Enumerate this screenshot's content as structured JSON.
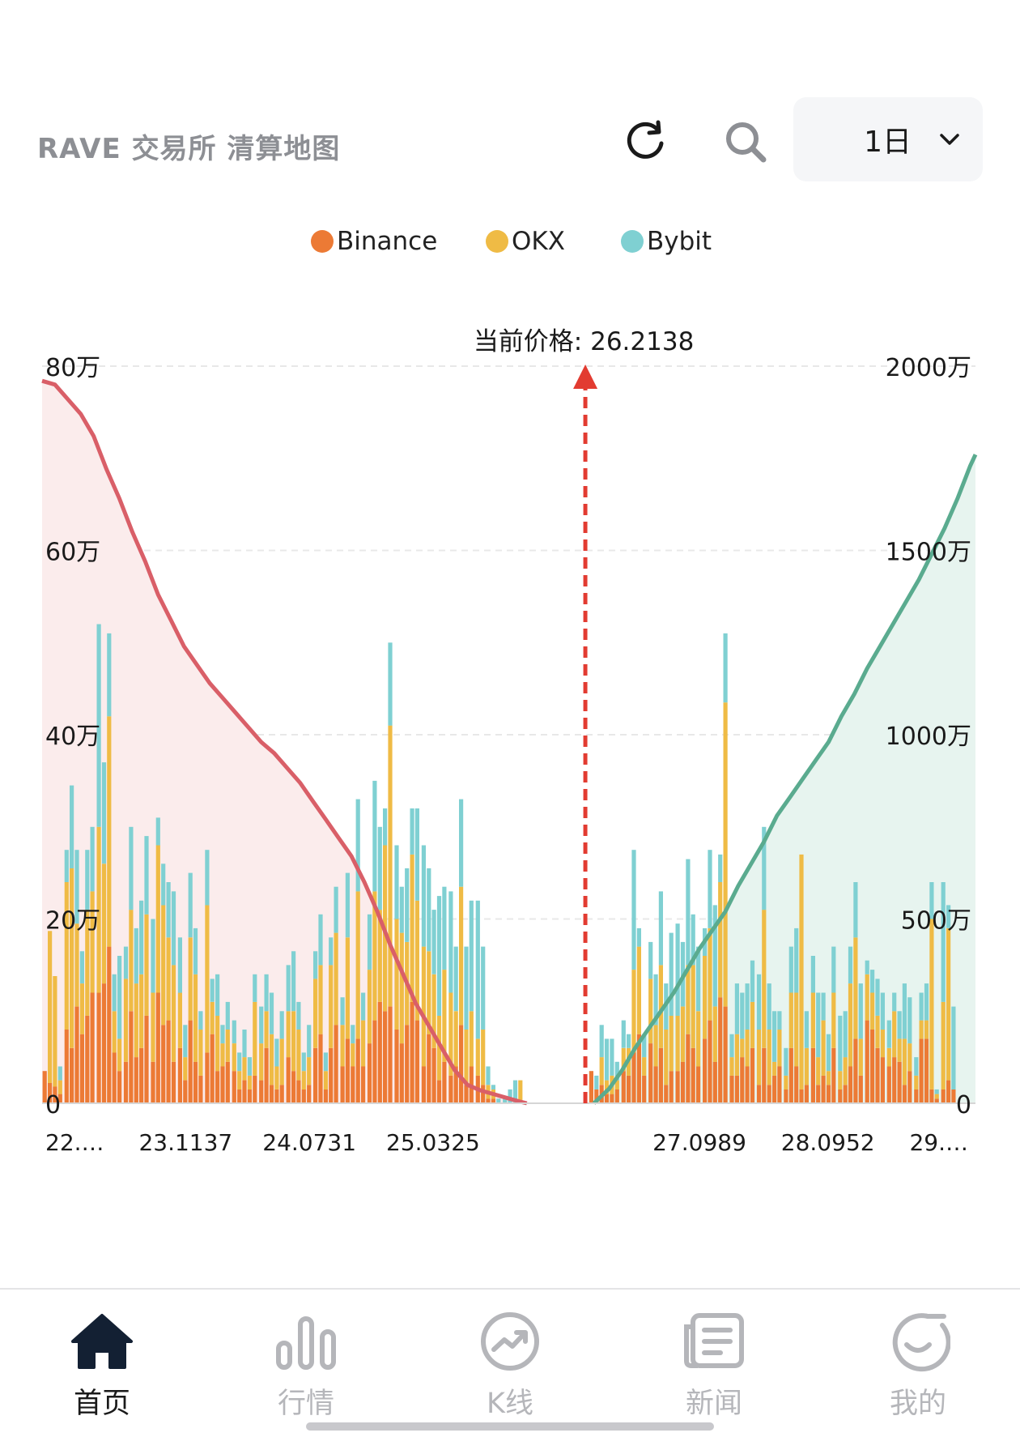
{
  "header": {
    "title": "RAVE 交易所 清算地图",
    "period_label": "1日",
    "icons": [
      "refresh-icon",
      "search-icon",
      "chevron-down-icon"
    ]
  },
  "legend": [
    {
      "label": "Binance",
      "color": "#ec7a35"
    },
    {
      "label": "OKX",
      "color": "#efbb45"
    },
    {
      "label": "Bybit",
      "color": "#7fd0d2"
    }
  ],
  "colors": {
    "binance": "#ec7a35",
    "okx": "#efbb45",
    "bybit": "#7fd0d2",
    "short_line": "#d95f68",
    "short_fill": "#fbecec",
    "long_line": "#5aab8f",
    "long_fill": "#e7f4ef",
    "price_marker": "#e23b31",
    "grid": "#e8e8e8"
  },
  "chart_data": {
    "type": "bar",
    "title": "RAVE 交易所 清算地图",
    "current_price_label": "当前价格: 26.2138",
    "current_price": 26.2138,
    "x_tick_labels": [
      "22.…",
      "23.1137",
      "24.0731",
      "25.0325",
      "27.0989",
      "28.0952",
      "29.…"
    ],
    "x_tick_values": [
      22.16,
      23.1137,
      24.0731,
      25.0325,
      27.0989,
      28.0952,
      29.09
    ],
    "xlim": [
      22.0,
      29.24
    ],
    "y_left": {
      "ticks": [
        "0",
        "20万",
        "40万",
        "60万",
        "80万"
      ],
      "tick_values": [
        0,
        200000,
        400000,
        600000,
        800000
      ],
      "ylim": [
        0,
        800000
      ]
    },
    "y_right": {
      "ticks": [
        "0",
        "500万",
        "1000万",
        "1500万",
        "2000万"
      ],
      "tick_values": [
        0,
        5000000,
        10000000,
        15000000,
        20000000
      ],
      "ylim": [
        0,
        20000000
      ]
    },
    "bar_series": [
      "Binance",
      "OKX",
      "Bybit"
    ],
    "bars": [
      [
        22.02,
        35000,
        0,
        0
      ],
      [
        22.06,
        22000,
        165000,
        0
      ],
      [
        22.1,
        18000,
        120000,
        0
      ],
      [
        22.14,
        10000,
        15000,
        15000
      ],
      [
        22.19,
        80000,
        160000,
        35000
      ],
      [
        22.23,
        60000,
        195000,
        90000
      ],
      [
        22.27,
        105000,
        90000,
        80000
      ],
      [
        22.31,
        75000,
        55000,
        35000
      ],
      [
        22.35,
        95000,
        115000,
        65000
      ],
      [
        22.39,
        120000,
        110000,
        70000
      ],
      [
        22.44,
        120000,
        180000,
        220000
      ],
      [
        22.48,
        130000,
        130000,
        110000
      ],
      [
        22.52,
        170000,
        250000,
        90000
      ],
      [
        22.56,
        55000,
        45000,
        40000
      ],
      [
        22.6,
        35000,
        35000,
        90000
      ],
      [
        22.65,
        45000,
        90000,
        35000
      ],
      [
        22.69,
        100000,
        110000,
        90000
      ],
      [
        22.73,
        50000,
        80000,
        60000
      ],
      [
        22.77,
        60000,
        80000,
        80000
      ],
      [
        22.81,
        95000,
        110000,
        85000
      ],
      [
        22.86,
        45000,
        75000,
        80000
      ],
      [
        22.9,
        120000,
        160000,
        30000
      ],
      [
        22.94,
        85000,
        130000,
        45000
      ],
      [
        22.98,
        90000,
        90000,
        60000
      ],
      [
        23.02,
        45000,
        105000,
        80000
      ],
      [
        23.07,
        60000,
        60000,
        60000
      ],
      [
        23.11,
        25000,
        25000,
        35000
      ],
      [
        23.15,
        90000,
        90000,
        70000
      ],
      [
        23.19,
        45000,
        95000,
        50000
      ],
      [
        23.23,
        30000,
        50000,
        20000
      ],
      [
        23.28,
        55000,
        160000,
        60000
      ],
      [
        23.32,
        75000,
        35000,
        25000
      ],
      [
        23.36,
        35000,
        60000,
        45000
      ],
      [
        23.4,
        40000,
        25000,
        20000
      ],
      [
        23.44,
        45000,
        35000,
        30000
      ],
      [
        23.49,
        35000,
        30000,
        25000
      ],
      [
        23.53,
        15000,
        20000,
        20000
      ],
      [
        23.57,
        25000,
        25000,
        30000
      ],
      [
        23.61,
        15000,
        15000,
        20000
      ],
      [
        23.65,
        30000,
        80000,
        30000
      ],
      [
        23.7,
        25000,
        40000,
        40000
      ],
      [
        23.74,
        60000,
        40000,
        40000
      ],
      [
        23.78,
        20000,
        55000,
        45000
      ],
      [
        23.82,
        15000,
        25000,
        30000
      ],
      [
        23.86,
        20000,
        50000,
        30000
      ],
      [
        23.91,
        50000,
        50000,
        50000
      ],
      [
        23.95,
        35000,
        65000,
        65000
      ],
      [
        23.99,
        25000,
        55000,
        30000
      ],
      [
        24.03,
        15000,
        20000,
        20000
      ],
      [
        24.07,
        20000,
        30000,
        35000
      ],
      [
        24.12,
        60000,
        75000,
        30000
      ],
      [
        24.16,
        75000,
        75000,
        55000
      ],
      [
        24.2,
        15000,
        20000,
        20000
      ],
      [
        24.24,
        60000,
        90000,
        30000
      ],
      [
        24.28,
        85000,
        100000,
        50000
      ],
      [
        24.33,
        40000,
        45000,
        30000
      ],
      [
        24.37,
        70000,
        110000,
        70000
      ],
      [
        24.41,
        40000,
        25000,
        20000
      ],
      [
        24.45,
        70000,
        160000,
        100000
      ],
      [
        24.49,
        40000,
        50000,
        30000
      ],
      [
        24.54,
        65000,
        80000,
        60000
      ],
      [
        24.58,
        90000,
        140000,
        120000
      ],
      [
        24.62,
        110000,
        100000,
        90000
      ],
      [
        24.66,
        100000,
        180000,
        40000
      ],
      [
        24.7,
        105000,
        305000,
        90000
      ],
      [
        24.75,
        80000,
        120000,
        80000
      ],
      [
        24.79,
        65000,
        120000,
        50000
      ],
      [
        24.83,
        85000,
        90000,
        80000
      ],
      [
        24.87,
        110000,
        160000,
        50000
      ],
      [
        24.91,
        90000,
        130000,
        100000
      ],
      [
        24.96,
        40000,
        130000,
        110000
      ],
      [
        25.0,
        75000,
        90000,
        90000
      ],
      [
        25.04,
        60000,
        80000,
        70000
      ],
      [
        25.08,
        25000,
        70000,
        130000
      ],
      [
        25.12,
        45000,
        100000,
        90000
      ],
      [
        25.17,
        30000,
        90000,
        110000
      ],
      [
        25.21,
        40000,
        60000,
        70000
      ],
      [
        25.25,
        85000,
        150000,
        95000
      ],
      [
        25.29,
        20000,
        60000,
        90000
      ],
      [
        25.33,
        40000,
        60000,
        120000
      ],
      [
        25.38,
        30000,
        40000,
        150000
      ],
      [
        25.42,
        20000,
        60000,
        90000
      ],
      [
        25.46,
        5000,
        15000,
        20000
      ],
      [
        25.5,
        5000,
        10000,
        5000
      ],
      [
        25.54,
        0,
        0,
        5000
      ],
      [
        25.59,
        0,
        0,
        8000
      ],
      [
        25.63,
        0,
        0,
        15000
      ],
      [
        25.67,
        0,
        0,
        25000
      ],
      [
        25.71,
        0,
        25000,
        0
      ],
      [
        26.26,
        35000,
        0,
        0
      ],
      [
        26.3,
        15000,
        0,
        15000
      ],
      [
        26.34,
        20000,
        30000,
        35000
      ],
      [
        26.38,
        10000,
        15000,
        45000
      ],
      [
        26.42,
        10000,
        20000,
        40000
      ],
      [
        26.46,
        15000,
        10000,
        20000
      ],
      [
        26.51,
        35000,
        25000,
        30000
      ],
      [
        26.55,
        30000,
        30000,
        15000
      ],
      [
        26.59,
        55000,
        90000,
        130000
      ],
      [
        26.63,
        75000,
        95000,
        20000
      ],
      [
        26.67,
        30000,
        20000,
        25000
      ],
      [
        26.72,
        65000,
        70000,
        40000
      ],
      [
        26.76,
        40000,
        45000,
        55000
      ],
      [
        26.8,
        60000,
        90000,
        80000
      ],
      [
        26.84,
        20000,
        60000,
        50000
      ],
      [
        26.88,
        35000,
        60000,
        90000
      ],
      [
        26.93,
        35000,
        60000,
        100000
      ],
      [
        26.97,
        45000,
        60000,
        70000
      ],
      [
        27.01,
        75000,
        75000,
        115000
      ],
      [
        27.05,
        60000,
        90000,
        55000
      ],
      [
        27.09,
        40000,
        60000,
        70000
      ],
      [
        27.14,
        70000,
        90000,
        30000
      ],
      [
        27.18,
        90000,
        100000,
        85000
      ],
      [
        27.22,
        45000,
        60000,
        110000
      ],
      [
        27.26,
        115000,
        125000,
        30000
      ],
      [
        27.3,
        105000,
        330000,
        75000
      ],
      [
        27.35,
        30000,
        20000,
        25000
      ],
      [
        27.39,
        30000,
        45000,
        55000
      ],
      [
        27.43,
        50000,
        20000,
        50000
      ],
      [
        27.47,
        40000,
        40000,
        50000
      ],
      [
        27.51,
        60000,
        50000,
        45000
      ],
      [
        27.56,
        20000,
        60000,
        60000
      ],
      [
        27.6,
        60000,
        150000,
        90000
      ],
      [
        27.64,
        20000,
        60000,
        50000
      ],
      [
        27.68,
        30000,
        15000,
        55000
      ],
      [
        27.72,
        40000,
        40000,
        20000
      ],
      [
        27.77,
        15000,
        15000,
        30000
      ],
      [
        27.81,
        60000,
        60000,
        50000
      ],
      [
        27.85,
        40000,
        80000,
        70000
      ],
      [
        27.89,
        15000,
        255000,
        0
      ],
      [
        27.93,
        20000,
        40000,
        40000
      ],
      [
        27.98,
        60000,
        60000,
        40000
      ],
      [
        28.02,
        20000,
        30000,
        70000
      ],
      [
        28.06,
        30000,
        60000,
        30000
      ],
      [
        28.1,
        20000,
        15000,
        40000
      ],
      [
        28.14,
        60000,
        60000,
        50000
      ],
      [
        28.19,
        15000,
        20000,
        60000
      ],
      [
        28.23,
        20000,
        30000,
        50000
      ],
      [
        28.27,
        40000,
        90000,
        40000
      ],
      [
        28.31,
        70000,
        110000,
        60000
      ],
      [
        28.35,
        30000,
        40000,
        60000
      ],
      [
        28.4,
        90000,
        50000,
        15000
      ],
      [
        28.44,
        80000,
        40000,
        25000
      ],
      [
        28.48,
        60000,
        35000,
        40000
      ],
      [
        28.52,
        50000,
        30000,
        40000
      ],
      [
        28.57,
        40000,
        20000,
        30000
      ],
      [
        28.61,
        50000,
        50000,
        20000
      ],
      [
        28.65,
        45000,
        25000,
        30000
      ],
      [
        28.69,
        20000,
        50000,
        60000
      ],
      [
        28.73,
        35000,
        30000,
        50000
      ],
      [
        28.78,
        15000,
        15000,
        20000
      ],
      [
        28.82,
        70000,
        20000,
        30000
      ],
      [
        28.86,
        70000,
        20000,
        40000
      ],
      [
        28.9,
        15000,
        185000,
        40000
      ],
      [
        28.94,
        5000,
        5000,
        5000
      ],
      [
        28.99,
        15000,
        95000,
        130000
      ],
      [
        29.03,
        25000,
        165000,
        25000
      ],
      [
        29.07,
        15000,
        0,
        90000
      ]
    ],
    "short_cumulative_right_axis": [
      [
        22.0,
        19600000
      ],
      [
        22.1,
        19500000
      ],
      [
        22.2,
        19100000
      ],
      [
        22.3,
        18700000
      ],
      [
        22.4,
        18100000
      ],
      [
        22.5,
        17200000
      ],
      [
        22.6,
        16400000
      ],
      [
        22.7,
        15500000
      ],
      [
        22.8,
        14700000
      ],
      [
        22.9,
        13800000
      ],
      [
        23.0,
        13100000
      ],
      [
        23.1,
        12400000
      ],
      [
        23.2,
        11900000
      ],
      [
        23.3,
        11400000
      ],
      [
        23.4,
        11000000
      ],
      [
        23.5,
        10600000
      ],
      [
        23.6,
        10200000
      ],
      [
        23.7,
        9800000
      ],
      [
        23.8,
        9500000
      ],
      [
        23.9,
        9100000
      ],
      [
        24.0,
        8700000
      ],
      [
        24.1,
        8200000
      ],
      [
        24.2,
        7700000
      ],
      [
        24.3,
        7200000
      ],
      [
        24.4,
        6700000
      ],
      [
        24.5,
        6000000
      ],
      [
        24.6,
        5200000
      ],
      [
        24.7,
        4300000
      ],
      [
        24.8,
        3500000
      ],
      [
        24.9,
        2700000
      ],
      [
        25.0,
        2100000
      ],
      [
        25.1,
        1500000
      ],
      [
        25.2,
        900000
      ],
      [
        25.3,
        500000
      ],
      [
        25.4,
        350000
      ],
      [
        25.5,
        250000
      ],
      [
        25.6,
        150000
      ],
      [
        25.7,
        50000
      ],
      [
        25.76,
        0
      ]
    ],
    "long_cumulative_right_axis": [
      [
        26.28,
        0
      ],
      [
        26.4,
        400000
      ],
      [
        26.5,
        900000
      ],
      [
        26.6,
        1500000
      ],
      [
        26.7,
        2000000
      ],
      [
        26.8,
        2500000
      ],
      [
        26.9,
        3000000
      ],
      [
        27.0,
        3600000
      ],
      [
        27.1,
        4200000
      ],
      [
        27.2,
        4700000
      ],
      [
        27.3,
        5200000
      ],
      [
        27.4,
        5900000
      ],
      [
        27.5,
        6500000
      ],
      [
        27.6,
        7100000
      ],
      [
        27.7,
        7800000
      ],
      [
        27.8,
        8300000
      ],
      [
        27.9,
        8800000
      ],
      [
        28.0,
        9300000
      ],
      [
        28.1,
        9800000
      ],
      [
        28.2,
        10500000
      ],
      [
        28.3,
        11100000
      ],
      [
        28.4,
        11800000
      ],
      [
        28.5,
        12400000
      ],
      [
        28.6,
        13000000
      ],
      [
        28.7,
        13600000
      ],
      [
        28.8,
        14200000
      ],
      [
        28.9,
        14900000
      ],
      [
        29.0,
        15600000
      ],
      [
        29.1,
        16400000
      ],
      [
        29.2,
        17300000
      ],
      [
        29.24,
        17600000
      ]
    ]
  },
  "nav": [
    {
      "label": "首页",
      "icon": "home-icon",
      "active": true
    },
    {
      "label": "行情",
      "icon": "bar-chart-icon",
      "active": false
    },
    {
      "label": "K线",
      "icon": "trend-icon",
      "active": false
    },
    {
      "label": "新闻",
      "icon": "news-icon",
      "active": false
    },
    {
      "label": "我的",
      "icon": "profile-icon",
      "active": false
    }
  ]
}
